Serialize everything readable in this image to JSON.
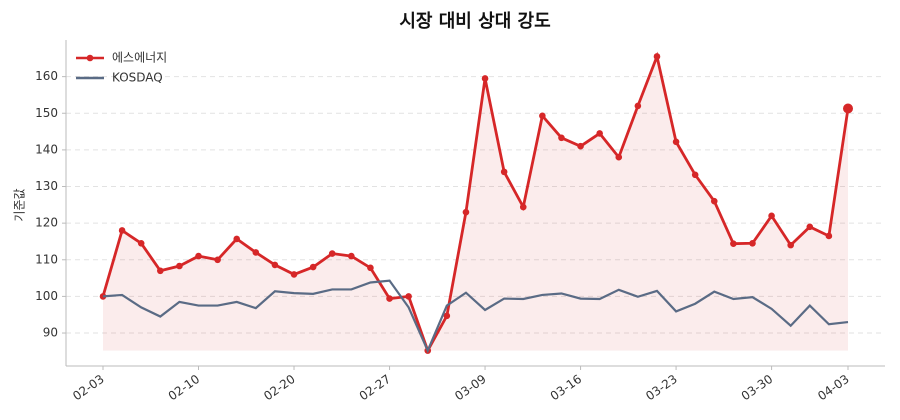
{
  "chart_data": {
    "type": "line",
    "title": "시장 대비 상대 강도",
    "y_label": "기준값",
    "categories": [
      "02-03",
      null,
      null,
      null,
      null,
      "02-10",
      null,
      null,
      null,
      null,
      "02-20",
      null,
      null,
      null,
      null,
      "02-27",
      null,
      null,
      null,
      null,
      "03-09",
      null,
      null,
      null,
      null,
      "03-16",
      null,
      null,
      null,
      null,
      "03-23",
      null,
      null,
      null,
      null,
      "03-30",
      null,
      null,
      null,
      "04-03"
    ],
    "series": [
      {
        "name": "에스에너지",
        "color": "#d62728",
        "values": [
          100,
          118,
          114.5,
          107,
          108.3,
          111,
          110,
          115.7,
          112,
          108.6,
          106,
          108,
          111.7,
          111,
          107.8,
          99.4,
          100,
          85.2,
          94.7,
          123,
          159.5,
          134,
          124.4,
          149.3,
          143.3,
          141,
          144.5,
          138,
          152,
          165.5,
          142.2,
          133.2,
          126,
          114.4,
          114.5,
          122,
          114,
          119,
          116.5,
          151.3
        ]
      },
      {
        "name": "KOSDAQ",
        "color": "#5a6b85",
        "values": [
          100,
          100.4,
          97,
          94.5,
          98.5,
          97.5,
          97.5,
          98.5,
          96.8,
          101.4,
          100.9,
          100.7,
          101.9,
          101.9,
          103.8,
          104.3,
          97,
          85.2,
          97.5,
          101,
          96.3,
          99.4,
          99.3,
          100.4,
          100.8,
          99.4,
          99.3,
          101.8,
          99.9,
          101.5,
          95.9,
          98,
          101.3,
          99.3,
          99.8,
          96.6,
          92,
          97.5,
          92.4,
          93
        ]
      }
    ],
    "ylim": [
      81,
      170
    ],
    "yticks": [
      90,
      100,
      110,
      120,
      130,
      140,
      150,
      160
    ],
    "grid": true,
    "legend": "upper-left"
  }
}
